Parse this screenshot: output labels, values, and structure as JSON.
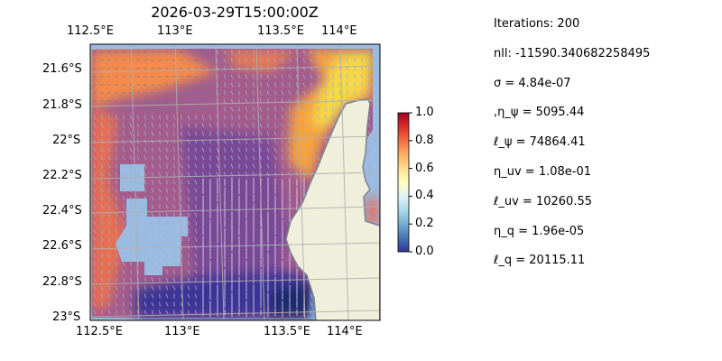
{
  "title": "2026-03-29T15:00:00Z",
  "map": {
    "lon_labels": [
      "112.5°E",
      "113°E",
      "113.5°E",
      "114°E"
    ],
    "lat_labels": [
      "21.6°S",
      "21.8°S",
      "22°S",
      "22.2°S",
      "22.4°S",
      "22.6°S",
      "22.8°S",
      "23°S"
    ],
    "extent": {
      "lon": [
        112.5,
        114.2
      ],
      "lat": [
        -23.0,
        -21.5
      ]
    },
    "gridlines": true,
    "colors": {
      "ocean": "#9bbbe0",
      "land": "#efefdc",
      "coast": "#7a8190",
      "grid": "#b0b0b0"
    }
  },
  "colorbar": {
    "ticks": [
      "0.0",
      "0.2",
      "0.4",
      "0.6",
      "0.8",
      "1.0"
    ],
    "range": [
      0,
      1
    ],
    "colormap": "RdYlBu_r"
  },
  "stats": [
    "Iterations: 200",
    "nll: -11590.340682258495",
    "σ = 4.84e-07",
    ",η_ψ = 5095.44",
    "ℓ_ψ = 74864.41",
    "η_uv = 1.08e-01",
    "ℓ_uv = 10260.55",
    "η_q = 1.96e-05",
    "ℓ_q = 20115.11"
  ]
}
